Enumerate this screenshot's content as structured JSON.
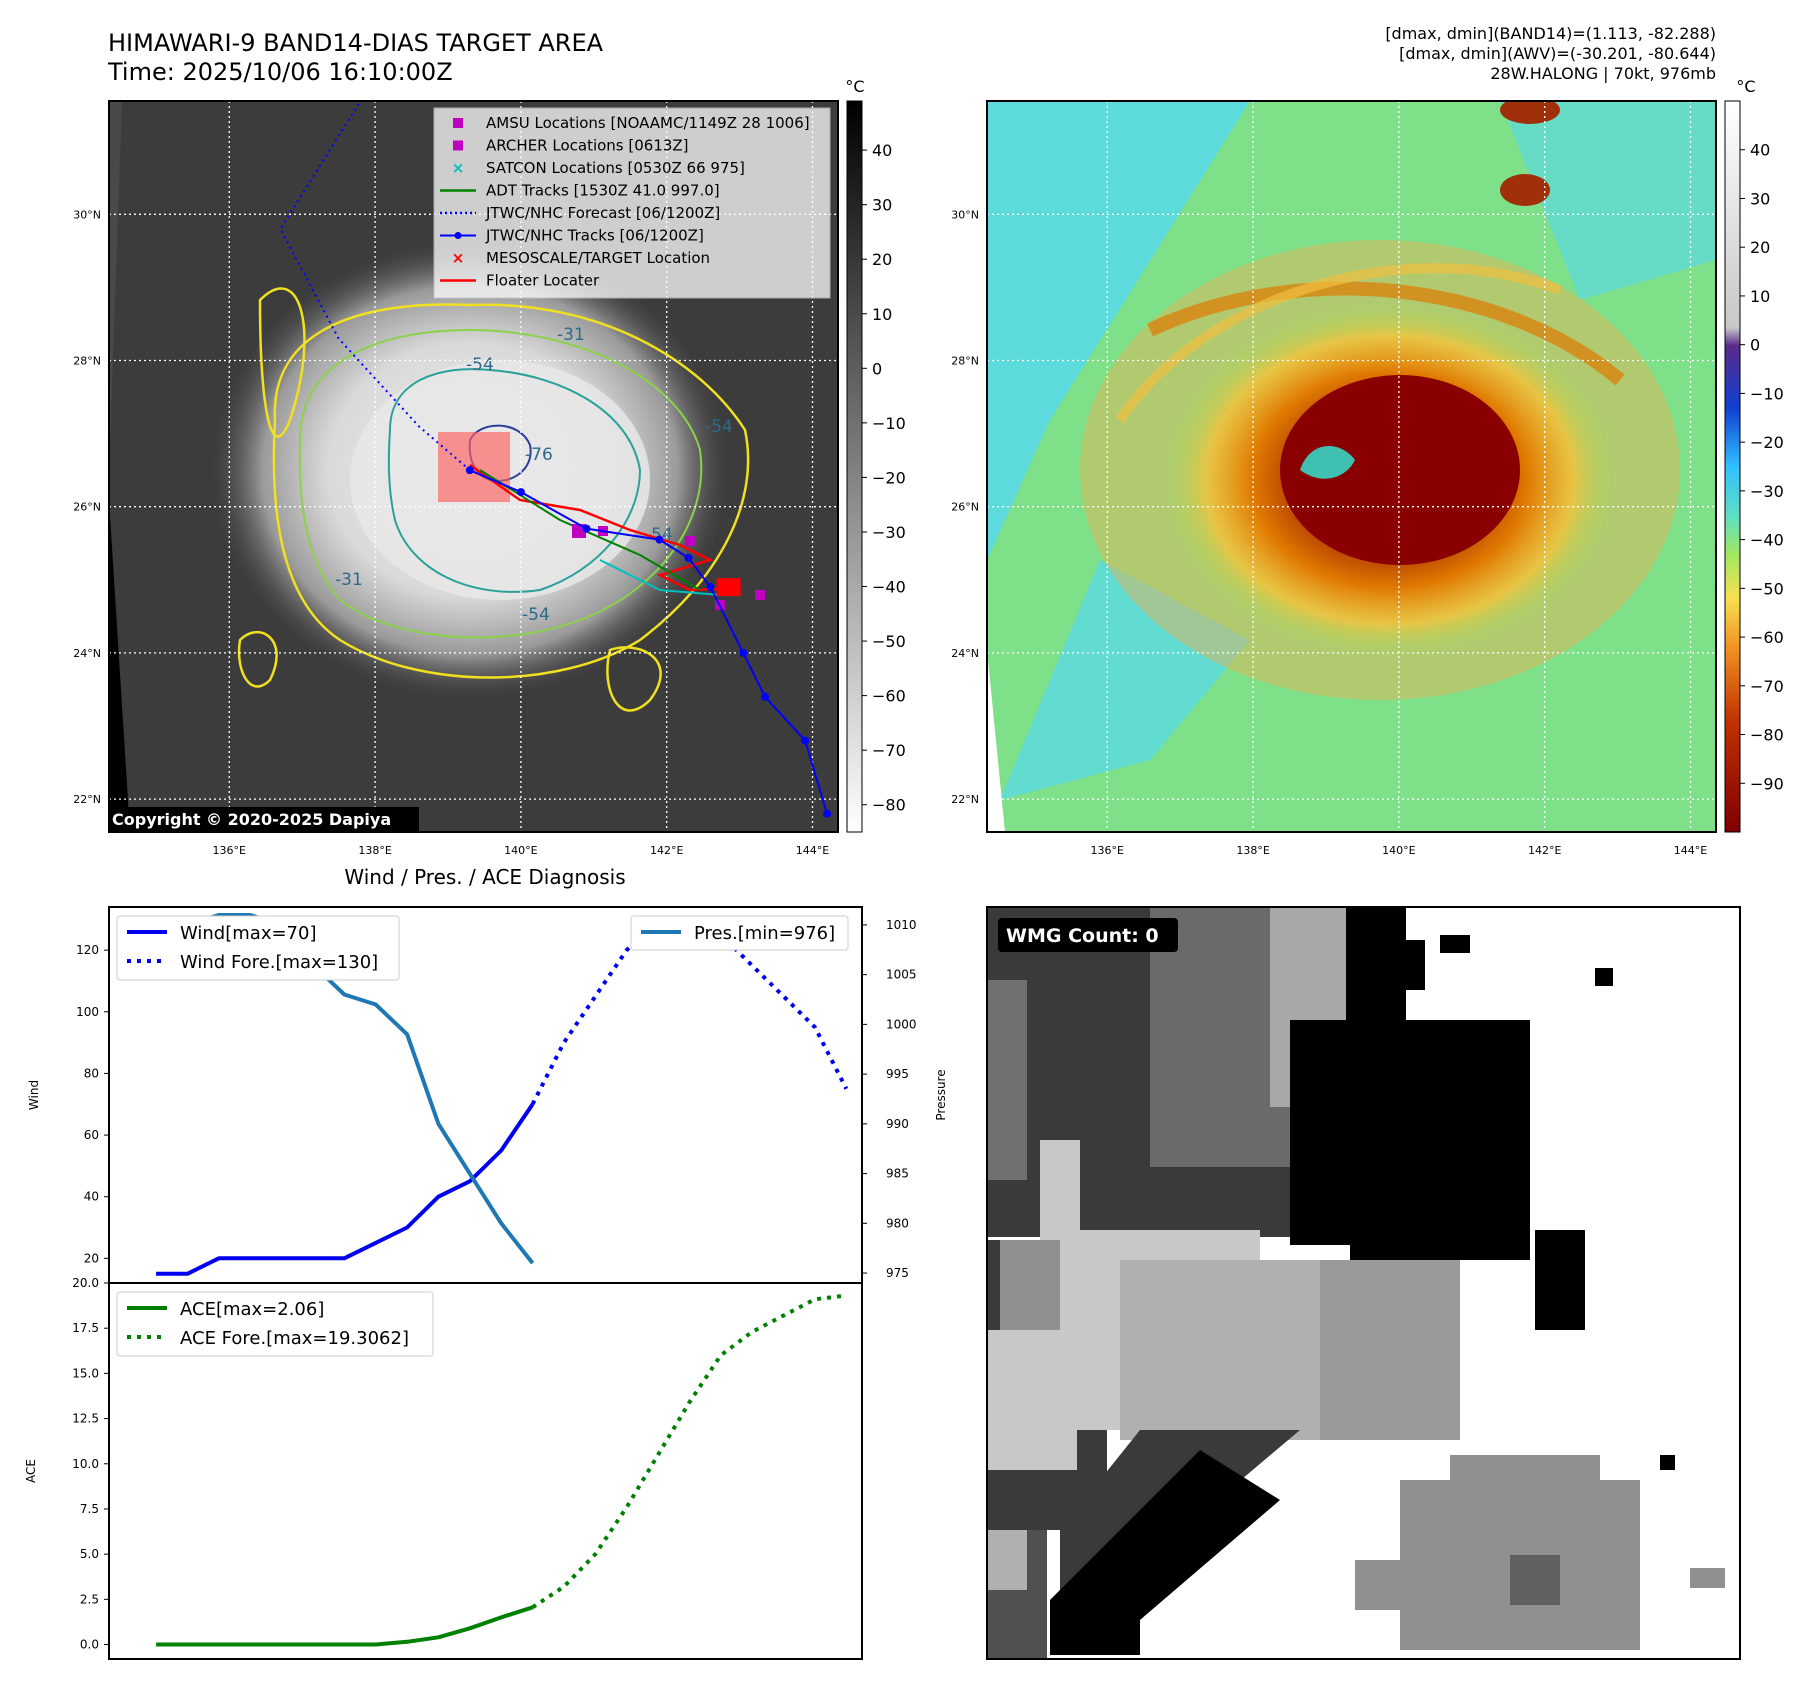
{
  "header": {
    "title_line1": "HIMAWARI-9 BAND14-DIAS TARGET AREA",
    "title_line2": "Time: 2025/10/06 16:10:00Z",
    "info_line1": "[dmax, dmin](BAND14)=(1.113, -82.288)",
    "info_line2": "[dmax, dmin](AWV)=(-30.201, -80.644)",
    "info_line3": "28W.HALONG | 70kt, 976mb"
  },
  "map_axes": {
    "lat_labels": [
      "30°N",
      "28°N",
      "26°N",
      "24°N",
      "22°N"
    ],
    "lat_values": [
      30,
      28,
      26,
      24,
      22
    ],
    "lon_labels": [
      "136°E",
      "138°E",
      "140°E",
      "142°E",
      "144°E"
    ],
    "lon_values": [
      136,
      138,
      140,
      142,
      144
    ],
    "lat_range": [
      21.55,
      31.55
    ],
    "lon_range": [
      134.35,
      144.35
    ]
  },
  "band14_panel": {
    "colorbar_unit": "°C",
    "colorbar_ticks": [
      40,
      30,
      20,
      10,
      0,
      -10,
      -20,
      -30,
      -40,
      -50,
      -60,
      -70,
      -80
    ],
    "colorbar_tick_labels": [
      "40",
      "30",
      "20",
      "10",
      "0",
      "−10",
      "−20",
      "−30",
      "−40",
      "−50",
      "−60",
      "−70",
      "−80"
    ],
    "colorbar_range": [
      -85,
      49
    ],
    "copyright": "Copyright © 2020-2025 Dapiya",
    "contour_labels": [
      "-31",
      "-54",
      "-76",
      "-54",
      "-54",
      "-31",
      "-54"
    ],
    "legend": [
      {
        "label": "AMSU Locations [NOAAMC/1149Z 28 1006]",
        "color": "#c000c0",
        "marker": "square"
      },
      {
        "label": "ARCHER Locations [0613Z]",
        "color": "#c000c0",
        "marker": "square"
      },
      {
        "label": "SATCON Locations [0530Z 66 975]",
        "color": "#00bfbf",
        "marker": "x"
      },
      {
        "label": "ADT Tracks [1530Z 41.0 997.0]",
        "color": "#008000",
        "marker": "line"
      },
      {
        "label": "JTWC/NHC Forecast [06/1200Z]",
        "color": "#0000ff",
        "marker": "dotted"
      },
      {
        "label": "JTWC/NHC Tracks [06/1200Z]",
        "color": "#0000ff",
        "marker": "line-dot"
      },
      {
        "label": "MESOSCALE/TARGET Location",
        "color": "#ff0000",
        "marker": "x"
      },
      {
        "label": "Floater Locater",
        "color": "#ff0000",
        "marker": "line"
      }
    ],
    "jtwc_track_points": [
      {
        "lon": 144.2,
        "lat": 21.8
      },
      {
        "lon": 143.9,
        "lat": 22.8
      },
      {
        "lon": 143.35,
        "lat": 23.4
      },
      {
        "lon": 143.05,
        "lat": 24.0
      },
      {
        "lon": 142.6,
        "lat": 24.9
      },
      {
        "lon": 142.3,
        "lat": 25.3
      },
      {
        "lon": 141.9,
        "lat": 25.55
      },
      {
        "lon": 140.9,
        "lat": 25.7
      },
      {
        "lon": 140.0,
        "lat": 26.2
      },
      {
        "lon": 139.3,
        "lat": 26.5
      }
    ],
    "jtwc_forecast_points": [
      {
        "lon": 139.3,
        "lat": 26.5
      },
      {
        "lon": 138.6,
        "lat": 27.1
      },
      {
        "lon": 137.5,
        "lat": 28.3
      },
      {
        "lon": 136.7,
        "lat": 29.8
      },
      {
        "lon": 137.8,
        "lat": 31.55
      }
    ],
    "target_location": {
      "lon": 142.85,
      "lat": 24.9
    }
  },
  "awv_panel": {
    "colorbar_unit": "°C",
    "colorbar_ticks": [
      40,
      30,
      20,
      10,
      0,
      -10,
      -20,
      -30,
      -40,
      -50,
      -60,
      -70,
      -80,
      -90
    ],
    "colorbar_tick_labels": [
      "40",
      "30",
      "20",
      "10",
      "0",
      "−10",
      "−20",
      "−30",
      "−40",
      "−50",
      "−60",
      "−70",
      "−80",
      "−90"
    ],
    "colorbar_range": [
      -100,
      50
    ]
  },
  "diagnosis_panel": {
    "title": "Wind / Pres. / ACE Diagnosis",
    "wind_ylabel": "Wind",
    "pres_ylabel": "Pressure",
    "ace_ylabel": "ACE",
    "wind_legend": [
      "Wind[max=70]",
      "Wind Fore.[max=130]"
    ],
    "pres_legend": [
      "Pres.[min=976]"
    ],
    "ace_legend": [
      "ACE[max=2.06]",
      "ACE Fore.[max=19.3062]"
    ],
    "wind_ticks": [
      20,
      40,
      60,
      80,
      100,
      120
    ],
    "pres_ticks": [
      975,
      980,
      985,
      990,
      995,
      1000,
      1005,
      1010
    ],
    "ace_ticks": [
      0.0,
      2.5,
      5.0,
      7.5,
      10.0,
      12.5,
      15.0,
      17.5,
      20.0
    ],
    "ace_tick_labels": [
      "0.0",
      "2.5",
      "5.0",
      "7.5",
      "10.0",
      "12.5",
      "15.0",
      "17.5",
      "20.0"
    ]
  },
  "chart_data": [
    {
      "type": "line",
      "ylabel": "Wind",
      "xlim": [
        -1.5,
        22.5
      ],
      "ylim": [
        12,
        134
      ],
      "series": [
        {
          "name": "Wind[max=70]",
          "color": "#0000ee",
          "style": "solid",
          "x": [
            0,
            1,
            2,
            3,
            4,
            5,
            6,
            7,
            8,
            9,
            10,
            11,
            12
          ],
          "values": [
            15,
            15,
            20,
            20,
            20,
            20,
            20,
            25,
            30,
            40,
            45,
            55,
            70
          ]
        },
        {
          "name": "Wind Fore.[max=130]",
          "color": "#0000ee",
          "style": "dotted",
          "x": [
            12,
            13,
            14,
            15,
            16,
            17,
            18,
            19,
            20,
            21,
            22
          ],
          "values": [
            70,
            90,
            105,
            120,
            130,
            130,
            125,
            115,
            105,
            95,
            75
          ]
        }
      ]
    },
    {
      "type": "line",
      "ylabel": "Pressure",
      "xlim": [
        -1.5,
        22.5
      ],
      "ylim": [
        974,
        1011.8
      ],
      "series": [
        {
          "name": "Pres.[min=976]",
          "color": "#1f77b4",
          "style": "solid",
          "x": [
            0,
            1,
            2,
            3,
            4,
            5,
            6,
            7,
            8,
            9,
            10,
            11,
            12
          ],
          "values": [
            1010,
            1010,
            1011,
            1011,
            1010,
            1006,
            1003,
            1002,
            999,
            990,
            985,
            980,
            976
          ]
        }
      ]
    },
    {
      "type": "line",
      "ylabel": "ACE",
      "xlim": [
        -1.5,
        22.5
      ],
      "ylim": [
        -0.8,
        20.0
      ],
      "series": [
        {
          "name": "ACE[max=2.06]",
          "color": "#008000",
          "style": "solid",
          "x": [
            0,
            1,
            2,
            3,
            4,
            5,
            6,
            7,
            8,
            9,
            10,
            11,
            12
          ],
          "values": [
            0,
            0,
            0,
            0,
            0,
            0,
            0,
            0,
            0.15,
            0.4,
            0.9,
            1.5,
            2.06
          ]
        },
        {
          "name": "ACE Fore.[max=19.3062]",
          "color": "#008000",
          "style": "dotted",
          "x": [
            12,
            13,
            14,
            15,
            16,
            17,
            18,
            19,
            20,
            21,
            22
          ],
          "values": [
            2.06,
            3.2,
            5.0,
            7.6,
            10.5,
            13.4,
            16.0,
            17.3,
            18.2,
            19.1,
            19.3062
          ]
        }
      ]
    }
  ],
  "wmg_panel": {
    "label": "WMG Count: 0"
  }
}
